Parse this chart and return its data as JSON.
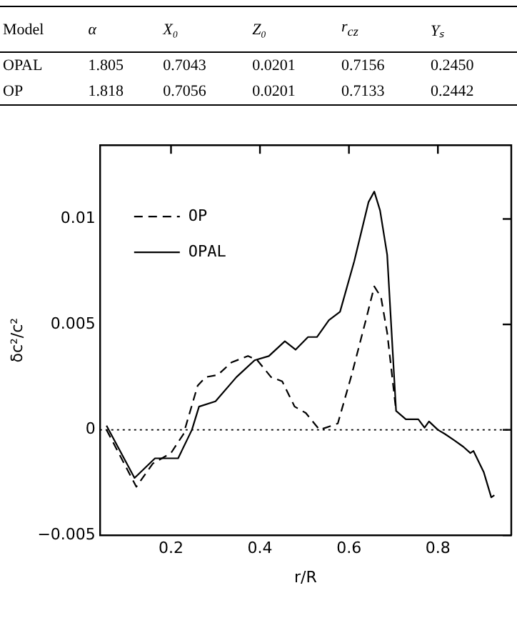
{
  "chart_data": [
    {
      "type": "other",
      "annotations": [
        "Model",
        "α",
        "X₀",
        "Z₀",
        "r$_{cz}$",
        "Yₛ",
        "OPAL",
        "1.805",
        "0.7043",
        "0.0201",
        "0.7156",
        "0.2450",
        "OP",
        "1.818",
        "0.7056",
        "0.0201",
        "0.7133",
        "0.2442"
      ]
    },
    {
      "type": "line",
      "xlabel": "r/R",
      "ylabel": "δc²/c²",
      "xlim": [
        0.04,
        0.965
      ],
      "ylim": [
        -0.005,
        0.0135
      ],
      "xticks": [
        0.2,
        0.4,
        0.6,
        0.8
      ],
      "yticks": [
        {
          "value": -0.005,
          "label": "−0.005"
        },
        0,
        0.005,
        0.01
      ],
      "grid": false,
      "legend": "top left",
      "marker": "none",
      "ref_lines": [
        {
          "axis": "y",
          "value": 0,
          "color": "#000000",
          "line_style": "dotted"
        }
      ],
      "series": [
        {
          "name": "OP",
          "color": "#000000",
          "line_style": "dashed",
          "x": [
            0.055,
            0.122,
            0.159,
            0.2,
            0.228,
            0.26,
            0.278,
            0.305,
            0.336,
            0.373,
            0.394,
            0.425,
            0.45,
            0.478,
            0.503,
            0.534,
            0.575,
            0.606,
            0.638,
            0.657,
            0.672,
            0.686,
            0.706
          ],
          "values": [
            0,
            -0.0027,
            -0.0016,
            -0.0011,
            -0.0002,
            0.0021,
            0.0025,
            0.0026,
            0.0032,
            0.0035,
            0.0033,
            0.0025,
            0.0023,
            0.0011,
            0.0008,
            0,
            0.0003,
            0.0026,
            0.0052,
            0.0068,
            0.0063,
            0.0046,
            0.0009
          ]
        },
        {
          "name": "OPAL",
          "color": "#000000",
          "line_style": "solid",
          "x": [
            0.055,
            0.118,
            0.164,
            0.216,
            0.247,
            0.263,
            0.3,
            0.347,
            0.388,
            0.42,
            0.456,
            0.48,
            0.508,
            0.528,
            0.555,
            0.58,
            0.612,
            0.644,
            0.657,
            0.67,
            0.686,
            0.706,
            0.728,
            0.756,
            0.77,
            0.78,
            0.8,
            0.816,
            0.837,
            0.857,
            0.873,
            0.88,
            0.903,
            0.92,
            0.927
          ],
          "values": [
            0.0002,
            -0.00228,
            -0.00135,
            -0.00135,
            0,
            0.0011,
            0.00135,
            0.0025,
            0.0033,
            0.0035,
            0.0042,
            0.0038,
            0.0044,
            0.0044,
            0.0052,
            0.0056,
            0.008,
            0.0108,
            0.0113,
            0.0104,
            0.0083,
            0.0009,
            0.0005,
            0.0005,
            0.0001,
            0.0004,
            0,
            -0.0002,
            -0.0005,
            -0.0008,
            -0.0011,
            -0.001,
            -0.002,
            -0.0032,
            -0.0031
          ]
        }
      ]
    }
  ]
}
